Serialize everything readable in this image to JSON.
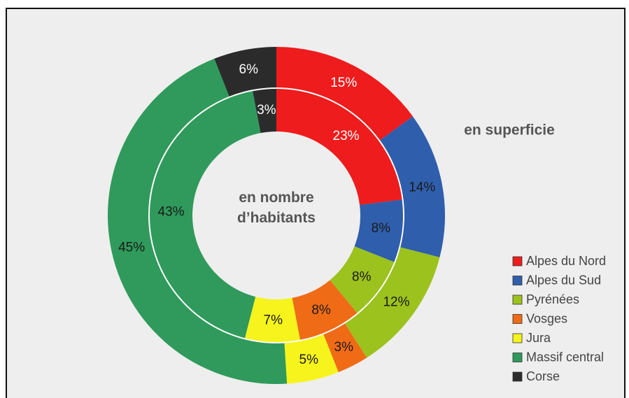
{
  "chart_data": {
    "type": "donut",
    "categories": [
      "Alpes du Nord",
      "Alpes du Sud",
      "Pyrénées",
      "Vosges",
      "Jura",
      "Massif central",
      "Corse"
    ],
    "colors": [
      "#ee1c1c",
      "#2f5eac",
      "#9cc21d",
      "#f06b16",
      "#f6f41c",
      "#2f9a5b",
      "#2b2b2b"
    ],
    "label_colors": [
      "#ffffff",
      "#1a1a1a",
      "#1a1a1a",
      "#1a1a1a",
      "#1a1a1a",
      "#1a1a1a",
      "#ffffff"
    ],
    "legend": "right",
    "series": [
      {
        "name": "en superficie",
        "values": [
          15,
          14,
          12,
          3,
          5,
          45,
          6
        ],
        "value_labels": [
          "15%",
          "14%",
          "12%",
          "3%",
          "5%",
          "45%",
          "6%"
        ]
      },
      {
        "name": "en nombre d’habitants",
        "values": [
          23,
          8,
          8,
          8,
          7,
          43,
          3
        ],
        "value_labels": [
          "23%",
          "8%",
          "8%",
          "8%",
          "7%",
          "43%",
          "3%"
        ]
      }
    ]
  }
}
